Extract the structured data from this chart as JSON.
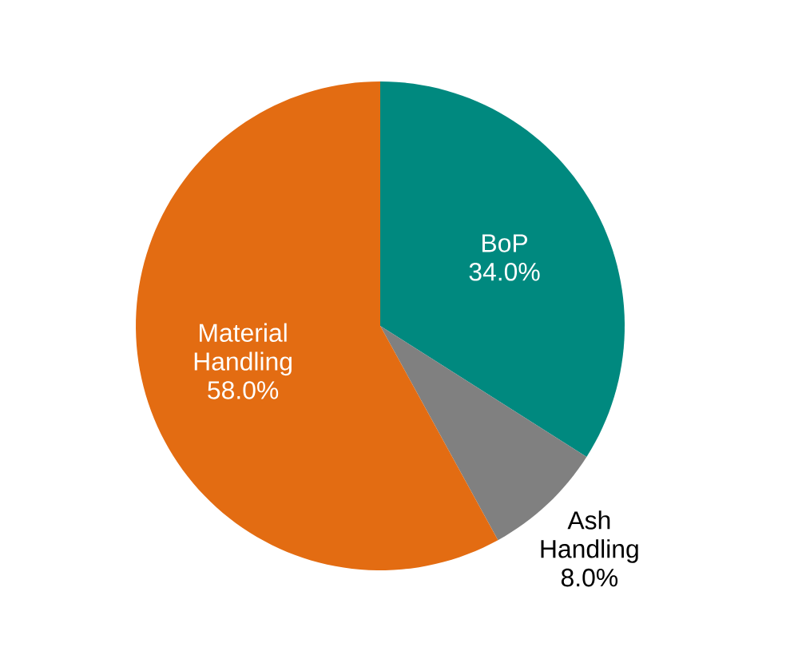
{
  "chart_data": {
    "type": "pie",
    "categories": [
      "BoP",
      "Ash Handling",
      "Material Handling"
    ],
    "values": [
      34.0,
      8.0,
      58.0
    ],
    "value_labels": [
      "34.0%",
      "8.0%",
      "58.0%"
    ],
    "colors": [
      "#00897f",
      "#808080",
      "#e36c12"
    ]
  }
}
